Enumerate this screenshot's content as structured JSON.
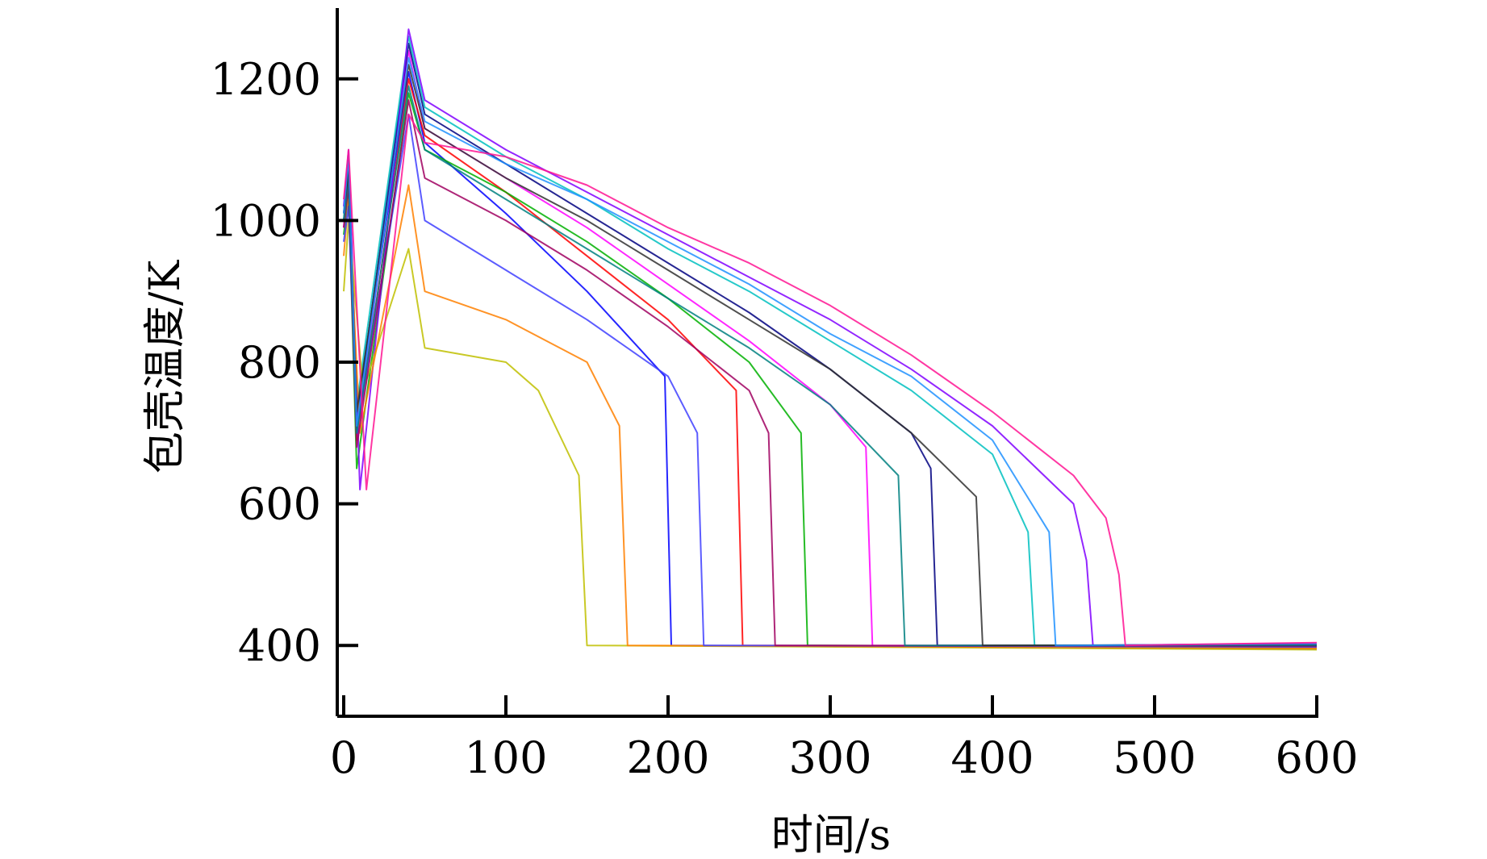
{
  "chart_data": {
    "type": "line",
    "xlabel": "时间/s",
    "ylabel": "包壳温度/K",
    "xlim": [
      0,
      600
    ],
    "ylim": [
      300,
      1300
    ],
    "xticks": [
      0,
      100,
      200,
      300,
      400,
      500,
      600
    ],
    "yticks": [
      400,
      600,
      800,
      1000,
      1200
    ],
    "grid": false,
    "legend": "none",
    "palette": [
      "#0000ff",
      "#ff0000",
      "#00b000",
      "#ff00ff",
      "#000080",
      "#00c0c0",
      "#8000ff",
      "#c0c000",
      "#ff8000",
      "#4040ff",
      "#a00060",
      "#008080",
      "#303030",
      "#1e90ff",
      "#ff1493"
    ],
    "series": [
      {
        "x": [
          0,
          3,
          8,
          40,
          50,
          100,
          150,
          198,
          202,
          600
        ],
        "y": [
          1000,
          1060,
          720,
          1210,
          1110,
          1010,
          900,
          780,
          400,
          395
        ]
      },
      {
        "x": [
          0,
          3,
          8,
          40,
          50,
          100,
          150,
          200,
          242,
          246,
          600
        ],
        "y": [
          1000,
          1050,
          690,
          1200,
          1120,
          1040,
          950,
          860,
          760,
          400,
          396
        ]
      },
      {
        "x": [
          0,
          3,
          8,
          40,
          50,
          100,
          150,
          200,
          250,
          282,
          286,
          600
        ],
        "y": [
          980,
          1040,
          650,
          1180,
          1100,
          1040,
          970,
          890,
          800,
          700,
          400,
          397
        ]
      },
      {
        "x": [
          0,
          3,
          8,
          40,
          50,
          100,
          150,
          200,
          250,
          300,
          322,
          326,
          600
        ],
        "y": [
          990,
          1070,
          700,
          1240,
          1130,
          1060,
          990,
          910,
          830,
          740,
          680,
          400,
          398
        ]
      },
      {
        "x": [
          0,
          3,
          8,
          40,
          50,
          100,
          150,
          200,
          250,
          300,
          350,
          362,
          366,
          600
        ],
        "y": [
          1010,
          1080,
          720,
          1250,
          1150,
          1080,
          1010,
          940,
          870,
          790,
          700,
          650,
          400,
          400
        ]
      },
      {
        "x": [
          0,
          3,
          8,
          40,
          50,
          100,
          150,
          200,
          250,
          300,
          350,
          400,
          422,
          426,
          600
        ],
        "y": [
          1000,
          1090,
          740,
          1260,
          1160,
          1090,
          1030,
          960,
          900,
          830,
          760,
          670,
          560,
          400,
          401
        ]
      },
      {
        "x": [
          0,
          3,
          10,
          40,
          50,
          100,
          150,
          200,
          250,
          300,
          350,
          400,
          450,
          458,
          462,
          600
        ],
        "y": [
          1020,
          1100,
          620,
          1270,
          1170,
          1100,
          1040,
          980,
          920,
          860,
          790,
          710,
          600,
          520,
          400,
          403
        ]
      },
      {
        "x": [
          0,
          3,
          12,
          40,
          50,
          100,
          120,
          145,
          150,
          600
        ],
        "y": [
          900,
          1000,
          760,
          960,
          820,
          800,
          760,
          640,
          400,
          394
        ]
      },
      {
        "x": [
          0,
          3,
          10,
          40,
          50,
          100,
          150,
          170,
          175,
          600
        ],
        "y": [
          950,
          1030,
          700,
          1050,
          900,
          860,
          800,
          710,
          400,
          396
        ]
      },
      {
        "x": [
          0,
          3,
          8,
          40,
          50,
          100,
          150,
          200,
          218,
          222,
          600
        ],
        "y": [
          970,
          1020,
          700,
          1150,
          1000,
          930,
          860,
          780,
          700,
          400,
          398
        ]
      },
      {
        "x": [
          0,
          3,
          8,
          40,
          50,
          100,
          150,
          200,
          250,
          262,
          266,
          600
        ],
        "y": [
          990,
          1050,
          680,
          1170,
          1060,
          1000,
          930,
          850,
          760,
          700,
          400,
          399
        ]
      },
      {
        "x": [
          0,
          3,
          8,
          40,
          50,
          100,
          150,
          200,
          250,
          300,
          342,
          346,
          600
        ],
        "y": [
          1000,
          1060,
          700,
          1190,
          1100,
          1030,
          960,
          890,
          820,
          740,
          640,
          400,
          400
        ]
      },
      {
        "x": [
          0,
          3,
          8,
          40,
          50,
          100,
          150,
          200,
          250,
          300,
          350,
          390,
          394,
          600
        ],
        "y": [
          1010,
          1070,
          730,
          1220,
          1130,
          1060,
          1000,
          930,
          860,
          790,
          700,
          610,
          400,
          401
        ]
      },
      {
        "x": [
          0,
          3,
          8,
          40,
          50,
          100,
          150,
          200,
          250,
          300,
          350,
          400,
          435,
          439,
          600
        ],
        "y": [
          1010,
          1090,
          710,
          1230,
          1140,
          1080,
          1030,
          970,
          910,
          840,
          780,
          690,
          560,
          400,
          402
        ]
      },
      {
        "x": [
          0,
          3,
          14,
          40,
          50,
          100,
          150,
          200,
          250,
          300,
          350,
          400,
          450,
          470,
          478,
          482,
          600
        ],
        "y": [
          1030,
          1100,
          620,
          1150,
          1110,
          1090,
          1050,
          990,
          940,
          880,
          810,
          730,
          640,
          580,
          500,
          400,
          404
        ]
      }
    ]
  }
}
